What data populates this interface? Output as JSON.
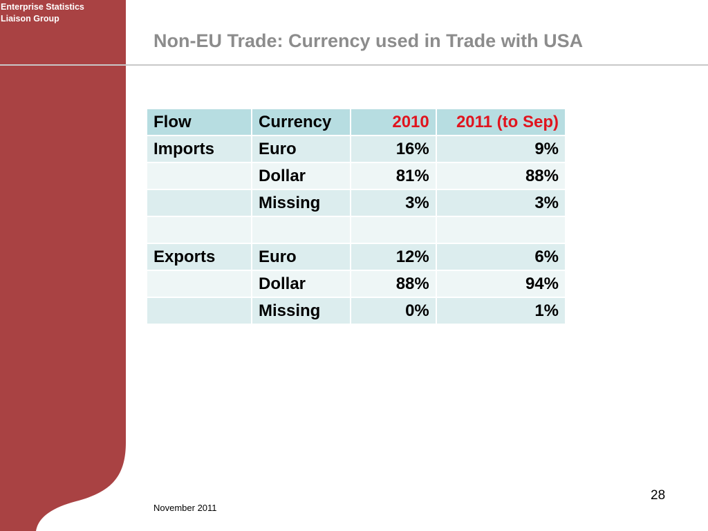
{
  "sidebar": {
    "org_line1": "Enterprise Statistics",
    "org_line2": "Liaison Group",
    "color": "#a94243"
  },
  "title": "Non-EU Trade: Currency used in Trade with USA",
  "table": {
    "headers": [
      "Flow",
      "Currency",
      "2010",
      "2011 (to Sep)"
    ],
    "rows": [
      [
        "Imports",
        "Euro",
        "16%",
        "9%"
      ],
      [
        "",
        "Dollar",
        "81%",
        "88%"
      ],
      [
        "",
        "Missing",
        "3%",
        "3%"
      ],
      [
        "",
        "",
        "",
        ""
      ],
      [
        "Exports",
        "Euro",
        "12%",
        "6%"
      ],
      [
        "",
        "Dollar",
        "88%",
        "94%"
      ],
      [
        "",
        "Missing",
        "0%",
        "1%"
      ]
    ],
    "header_bg": "#b7dde1",
    "row_bg_dark": "#dcedee",
    "row_bg_light": "#eef6f6",
    "year_header_color": "#e0141e"
  },
  "footer": {
    "date": "November 2011",
    "page_number": "28"
  }
}
